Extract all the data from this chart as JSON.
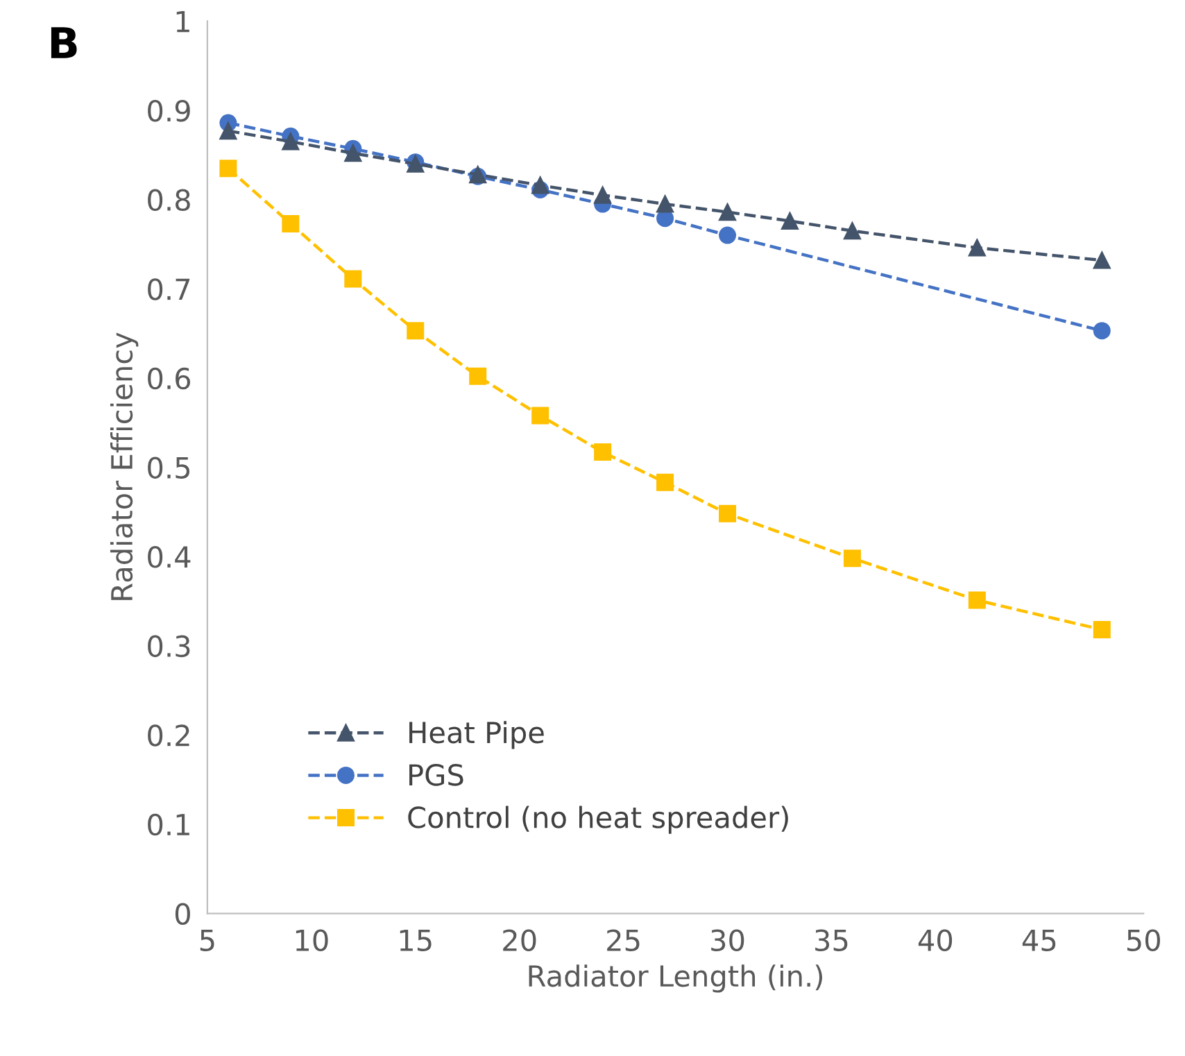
{
  "chart_data": {
    "type": "line",
    "xlabel": "Radiator Length (in.)",
    "ylabel": "Radiator Efficiency",
    "annotations": [
      "B"
    ],
    "xlim": [
      5,
      50
    ],
    "xticks": [
      5,
      10,
      15,
      20,
      25,
      30,
      35,
      40,
      45,
      50
    ],
    "ylim": [
      0,
      1
    ],
    "yticks": [
      0,
      0.1,
      0.2,
      0.3,
      0.4,
      0.5,
      0.6,
      0.7,
      0.8,
      0.9,
      1
    ],
    "grid": false,
    "legend": "bottom left",
    "line_style": "dashed",
    "series": [
      {
        "name": "Heat Pipe",
        "color": "#44546a",
        "marker": "triangle",
        "x": [
          6,
          9,
          12,
          15,
          18,
          21,
          24,
          27,
          30,
          33,
          36,
          42,
          48
        ],
        "values": [
          0.877,
          0.865,
          0.852,
          0.84,
          0.828,
          0.816,
          0.805,
          0.795,
          0.786,
          0.776,
          0.765,
          0.746,
          0.732
        ]
      },
      {
        "name": "PGS",
        "color": "#4472c4",
        "marker": "circle",
        "x": [
          6,
          9,
          12,
          15,
          18,
          21,
          24,
          27,
          30,
          48
        ],
        "values": [
          0.886,
          0.871,
          0.857,
          0.842,
          0.826,
          0.811,
          0.795,
          0.779,
          0.76,
          0.653
        ]
      },
      {
        "name": "Control (no heat spreader)",
        "color": "#ffc000",
        "marker": "square",
        "x": [
          6,
          9,
          12,
          15,
          18,
          21,
          24,
          27,
          30,
          36,
          42,
          48
        ],
        "values": [
          0.835,
          0.773,
          0.711,
          0.653,
          0.602,
          0.558,
          0.517,
          0.483,
          0.448,
          0.398,
          0.351,
          0.318
        ]
      }
    ]
  }
}
